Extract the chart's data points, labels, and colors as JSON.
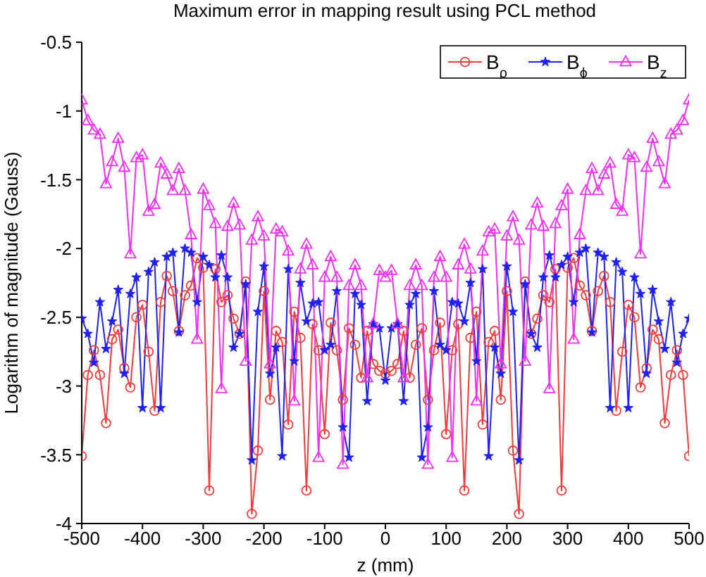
{
  "chart_data": {
    "type": "line",
    "title": "Maximum error in mapping result using PCL method",
    "xlabel": "z (mm)",
    "ylabel": "Logarithm of magnitude (Gauss)",
    "x": [
      -500,
      -490,
      -480,
      -470,
      -460,
      -450,
      -440,
      -430,
      -420,
      -410,
      -400,
      -390,
      -380,
      -370,
      -360,
      -350,
      -340,
      -330,
      -320,
      -310,
      -300,
      -290,
      -280,
      -270,
      -260,
      -250,
      -240,
      -230,
      -220,
      -210,
      -200,
      -190,
      -180,
      -170,
      -160,
      -150,
      -140,
      -130,
      -120,
      -110,
      -100,
      -90,
      -80,
      -70,
      -60,
      -50,
      -40,
      -30,
      -20,
      -10,
      0,
      10,
      20,
      30,
      40,
      50,
      60,
      70,
      80,
      90,
      100,
      110,
      120,
      130,
      140,
      150,
      160,
      170,
      180,
      190,
      200,
      210,
      220,
      230,
      240,
      250,
      260,
      270,
      280,
      290,
      300,
      310,
      320,
      330,
      340,
      350,
      360,
      370,
      380,
      390,
      400,
      410,
      420,
      430,
      440,
      450,
      460,
      470,
      480,
      490,
      500
    ],
    "series": [
      {
        "name": "B$_{ρ}$",
        "color": "#f03c3c",
        "marker": "circle",
        "values": [
          -3.51,
          -2.92,
          -2.74,
          -2.92,
          -3.27,
          -2.66,
          -2.59,
          -2.87,
          -3.01,
          -2.5,
          -2.41,
          -2.75,
          -3.18,
          -2.39,
          -2.2,
          -2.31,
          -2.6,
          -2.34,
          -2.27,
          -2.07,
          -2.14,
          -3.76,
          -2.15,
          -2.39,
          -2.34,
          -2.51,
          -2.62,
          -2.24,
          -3.93,
          -3.47,
          -2.31,
          -3.1,
          -2.6,
          -2.68,
          -3.28,
          -2.46,
          -2.65,
          -3.76,
          -2.55,
          -2.74,
          -3.35,
          -2.54,
          -2.74,
          -3.1,
          -2.58,
          -2.7,
          -2.94,
          -2.6,
          -2.84,
          -2.89,
          -2.91,
          -2.89,
          -2.84,
          -2.6,
          -2.94,
          -2.7,
          -2.58,
          -3.1,
          -2.74,
          -2.54,
          -3.35,
          -2.74,
          -2.55,
          -3.76,
          -2.65,
          -2.46,
          -3.28,
          -2.68,
          -2.6,
          -3.1,
          -2.31,
          -3.47,
          -3.93,
          -2.24,
          -2.62,
          -2.51,
          -2.34,
          -2.39,
          -2.15,
          -3.76,
          -2.14,
          -2.07,
          -2.27,
          -2.34,
          -2.6,
          -2.31,
          -2.2,
          -2.39,
          -3.18,
          -2.75,
          -2.41,
          -2.5,
          -3.01,
          -2.87,
          -2.59,
          -2.66,
          -3.27,
          -2.92,
          -2.74,
          -2.92,
          -3.51
        ]
      },
      {
        "name": "B$_{ϕ}$",
        "color": "#2020f0",
        "marker": "star",
        "values": [
          -2.51,
          -2.62,
          -2.83,
          -2.39,
          -2.73,
          -2.53,
          -2.3,
          -2.91,
          -2.33,
          -2.21,
          -3.16,
          -2.17,
          -2.1,
          -3.16,
          -2.06,
          -2.03,
          -2.61,
          -2.0,
          -2.03,
          -2.39,
          -2.06,
          -2.12,
          -2.21,
          -2.05,
          -2.21,
          -2.72,
          -2.62,
          -2.26,
          -3.54,
          -2.46,
          -2.13,
          -2.91,
          -2.72,
          -3.51,
          -2.15,
          -2.82,
          -2.25,
          -2.53,
          -2.4,
          -2.39,
          -2.74,
          -2.7,
          -2.31,
          -3.3,
          -3.52,
          -2.33,
          -2.41,
          -3.11,
          -2.55,
          -2.58,
          -2.96,
          -2.58,
          -2.55,
          -3.11,
          -2.41,
          -2.33,
          -3.52,
          -3.3,
          -2.31,
          -2.7,
          -2.74,
          -2.39,
          -2.4,
          -2.53,
          -2.25,
          -2.82,
          -2.15,
          -3.51,
          -2.72,
          -2.91,
          -2.13,
          -2.46,
          -3.54,
          -2.26,
          -2.62,
          -2.72,
          -2.21,
          -2.05,
          -2.21,
          -2.12,
          -2.06,
          -2.39,
          -2.03,
          -2.0,
          -2.61,
          -2.03,
          -2.06,
          -3.16,
          -2.1,
          -2.17,
          -3.16,
          -2.21,
          -2.33,
          -2.91,
          -2.3,
          -2.53,
          -2.73,
          -2.39,
          -2.83,
          -2.62,
          -2.51
        ]
      },
      {
        "name": "B$_{z}$",
        "color": "#f030f0",
        "marker": "triangle",
        "values": [
          -0.92,
          -1.07,
          -1.14,
          -1.17,
          -1.53,
          -1.37,
          -1.2,
          -1.41,
          -2.04,
          -1.34,
          -1.32,
          -1.73,
          -1.68,
          -1.38,
          -1.46,
          -1.58,
          -1.42,
          -1.58,
          -1.9,
          -2.66,
          -1.57,
          -1.69,
          -1.82,
          -3.02,
          -1.84,
          -1.67,
          -1.83,
          -2.82,
          -1.94,
          -1.77,
          -1.91,
          -2.84,
          -1.86,
          -1.88,
          -2.02,
          -3.11,
          -2.15,
          -1.97,
          -2.12,
          -3.52,
          -2.21,
          -2.06,
          -2.21,
          -3.57,
          -2.27,
          -2.12,
          -2.27,
          -2.94,
          -2.55,
          -2.16,
          -2.21,
          -2.16,
          -2.55,
          -2.94,
          -2.27,
          -2.12,
          -2.27,
          -3.57,
          -2.21,
          -2.06,
          -2.21,
          -3.52,
          -2.12,
          -1.97,
          -2.15,
          -3.11,
          -2.02,
          -1.88,
          -1.86,
          -2.84,
          -1.91,
          -1.77,
          -1.94,
          -2.82,
          -1.83,
          -1.67,
          -1.84,
          -3.02,
          -1.82,
          -1.69,
          -1.57,
          -2.66,
          -1.9,
          -1.58,
          -1.42,
          -1.58,
          -1.46,
          -1.38,
          -1.68,
          -1.73,
          -1.32,
          -1.34,
          -2.04,
          -1.41,
          -1.2,
          -1.37,
          -1.53,
          -1.17,
          -1.14,
          -1.07,
          -0.92
        ]
      }
    ],
    "xlim": [
      -500,
      500
    ],
    "xticks": [
      -500,
      -400,
      -300,
      -200,
      -100,
      0,
      100,
      200,
      300,
      400,
      500
    ],
    "ylim": [
      -4,
      -0.5
    ],
    "yticks": [
      -4,
      -3.5,
      -3,
      -2.5,
      -2,
      -1.5,
      -1,
      -0.5
    ],
    "grid": false,
    "legend": "top right",
    "line_style": "solid"
  }
}
